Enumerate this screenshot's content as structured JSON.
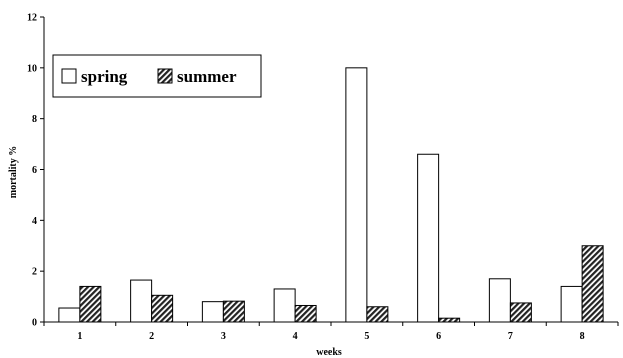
{
  "chart_data": {
    "type": "bar",
    "xlabel": "weeks",
    "ylabel": "mortality %",
    "ylim": [
      0,
      12
    ],
    "yticks": [
      "0",
      "2",
      "4",
      "6",
      "8",
      "10",
      "12"
    ],
    "categories": [
      "1",
      "2",
      "3",
      "4",
      "5",
      "6",
      "7",
      "8"
    ],
    "series": [
      {
        "name": "spring",
        "values": [
          0.55,
          1.65,
          0.8,
          1.3,
          10.0,
          6.6,
          1.7,
          1.4
        ],
        "fill": "#ffffff",
        "pattern": "none"
      },
      {
        "name": "summer",
        "values": [
          1.4,
          1.05,
          0.82,
          0.65,
          0.6,
          0.15,
          0.75,
          3.0
        ],
        "fill": "#555555",
        "pattern": "diagonal-hatch"
      }
    ],
    "legend_position": "top-left",
    "grid": false
  }
}
